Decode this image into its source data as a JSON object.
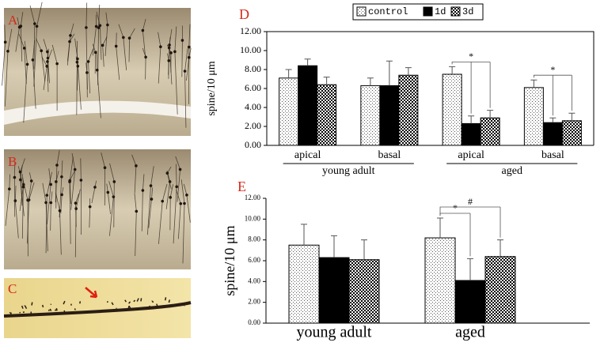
{
  "photo_labels": [
    "A",
    "B",
    "C"
  ],
  "chart_data": [
    {
      "type": "bar",
      "panel_label": "D",
      "y_label": "spine/10 μm",
      "categories": [
        "apical",
        "basal",
        "apical",
        "basal"
      ],
      "groups": [
        "young adult",
        "aged"
      ],
      "series": [
        {
          "name": "control",
          "pattern": "dots",
          "values": [
            7.1,
            6.3,
            7.5,
            6.1
          ],
          "errors": [
            0.9,
            0.8,
            0.8,
            0.8
          ]
        },
        {
          "name": "1d",
          "pattern": "solid",
          "values": [
            8.4,
            6.3,
            2.3,
            2.4
          ],
          "errors": [
            0.7,
            2.6,
            0.8,
            0.5
          ]
        },
        {
          "name": "3d",
          "pattern": "checker",
          "values": [
            6.4,
            7.4,
            2.9,
            2.6
          ],
          "errors": [
            0.8,
            0.8,
            0.8,
            0.8
          ]
        }
      ],
      "ylim": [
        0,
        12
      ],
      "yticks": [
        {
          "value": 0,
          "label": "0.00"
        },
        {
          "value": 2,
          "label": "2.00"
        },
        {
          "value": 4,
          "label": "4.00"
        },
        {
          "value": 6,
          "label": "6.00"
        },
        {
          "value": 8,
          "label": "8.00"
        },
        {
          "value": 10,
          "label": "10.00"
        },
        {
          "value": 12,
          "label": "12.00"
        }
      ],
      "comparisons": [
        {
          "label": "*",
          "category": 2,
          "series": [
            0,
            1,
            2
          ]
        },
        {
          "label": "*",
          "category": 3,
          "series": [
            0,
            1,
            2
          ]
        }
      ],
      "frame": true,
      "legend": "top"
    },
    {
      "type": "bar",
      "panel_label": "E",
      "y_label": "spine/10 μm",
      "categories": [
        "young adult",
        "aged"
      ],
      "series": [
        {
          "pattern": "dots",
          "values": [
            7.5,
            8.2
          ],
          "errors": [
            2.0,
            1.9
          ]
        },
        {
          "pattern": "solid",
          "values": [
            6.3,
            4.1
          ],
          "errors": [
            2.1,
            2.1
          ]
        },
        {
          "pattern": "checker",
          "values": [
            6.1,
            6.4
          ],
          "errors": [
            1.9,
            1.6
          ]
        }
      ],
      "ylim": [
        0,
        12
      ],
      "yticks": [
        {
          "value": 0,
          "label": "0.00"
        },
        {
          "value": 2,
          "label": "2.00"
        },
        {
          "value": 4,
          "label": "4.00"
        },
        {
          "value": 6,
          "label": "6.00"
        },
        {
          "value": 8,
          "label": "8.00"
        },
        {
          "value": 10,
          "label": "10.00"
        },
        {
          "value": 12,
          "label": "12.00"
        }
      ],
      "comparisons": [
        {
          "label": "*",
          "category": 1,
          "series": [
            0,
            1
          ]
        },
        {
          "label": "#",
          "category": 1,
          "series": [
            0,
            2
          ]
        }
      ],
      "frame": false
    }
  ]
}
